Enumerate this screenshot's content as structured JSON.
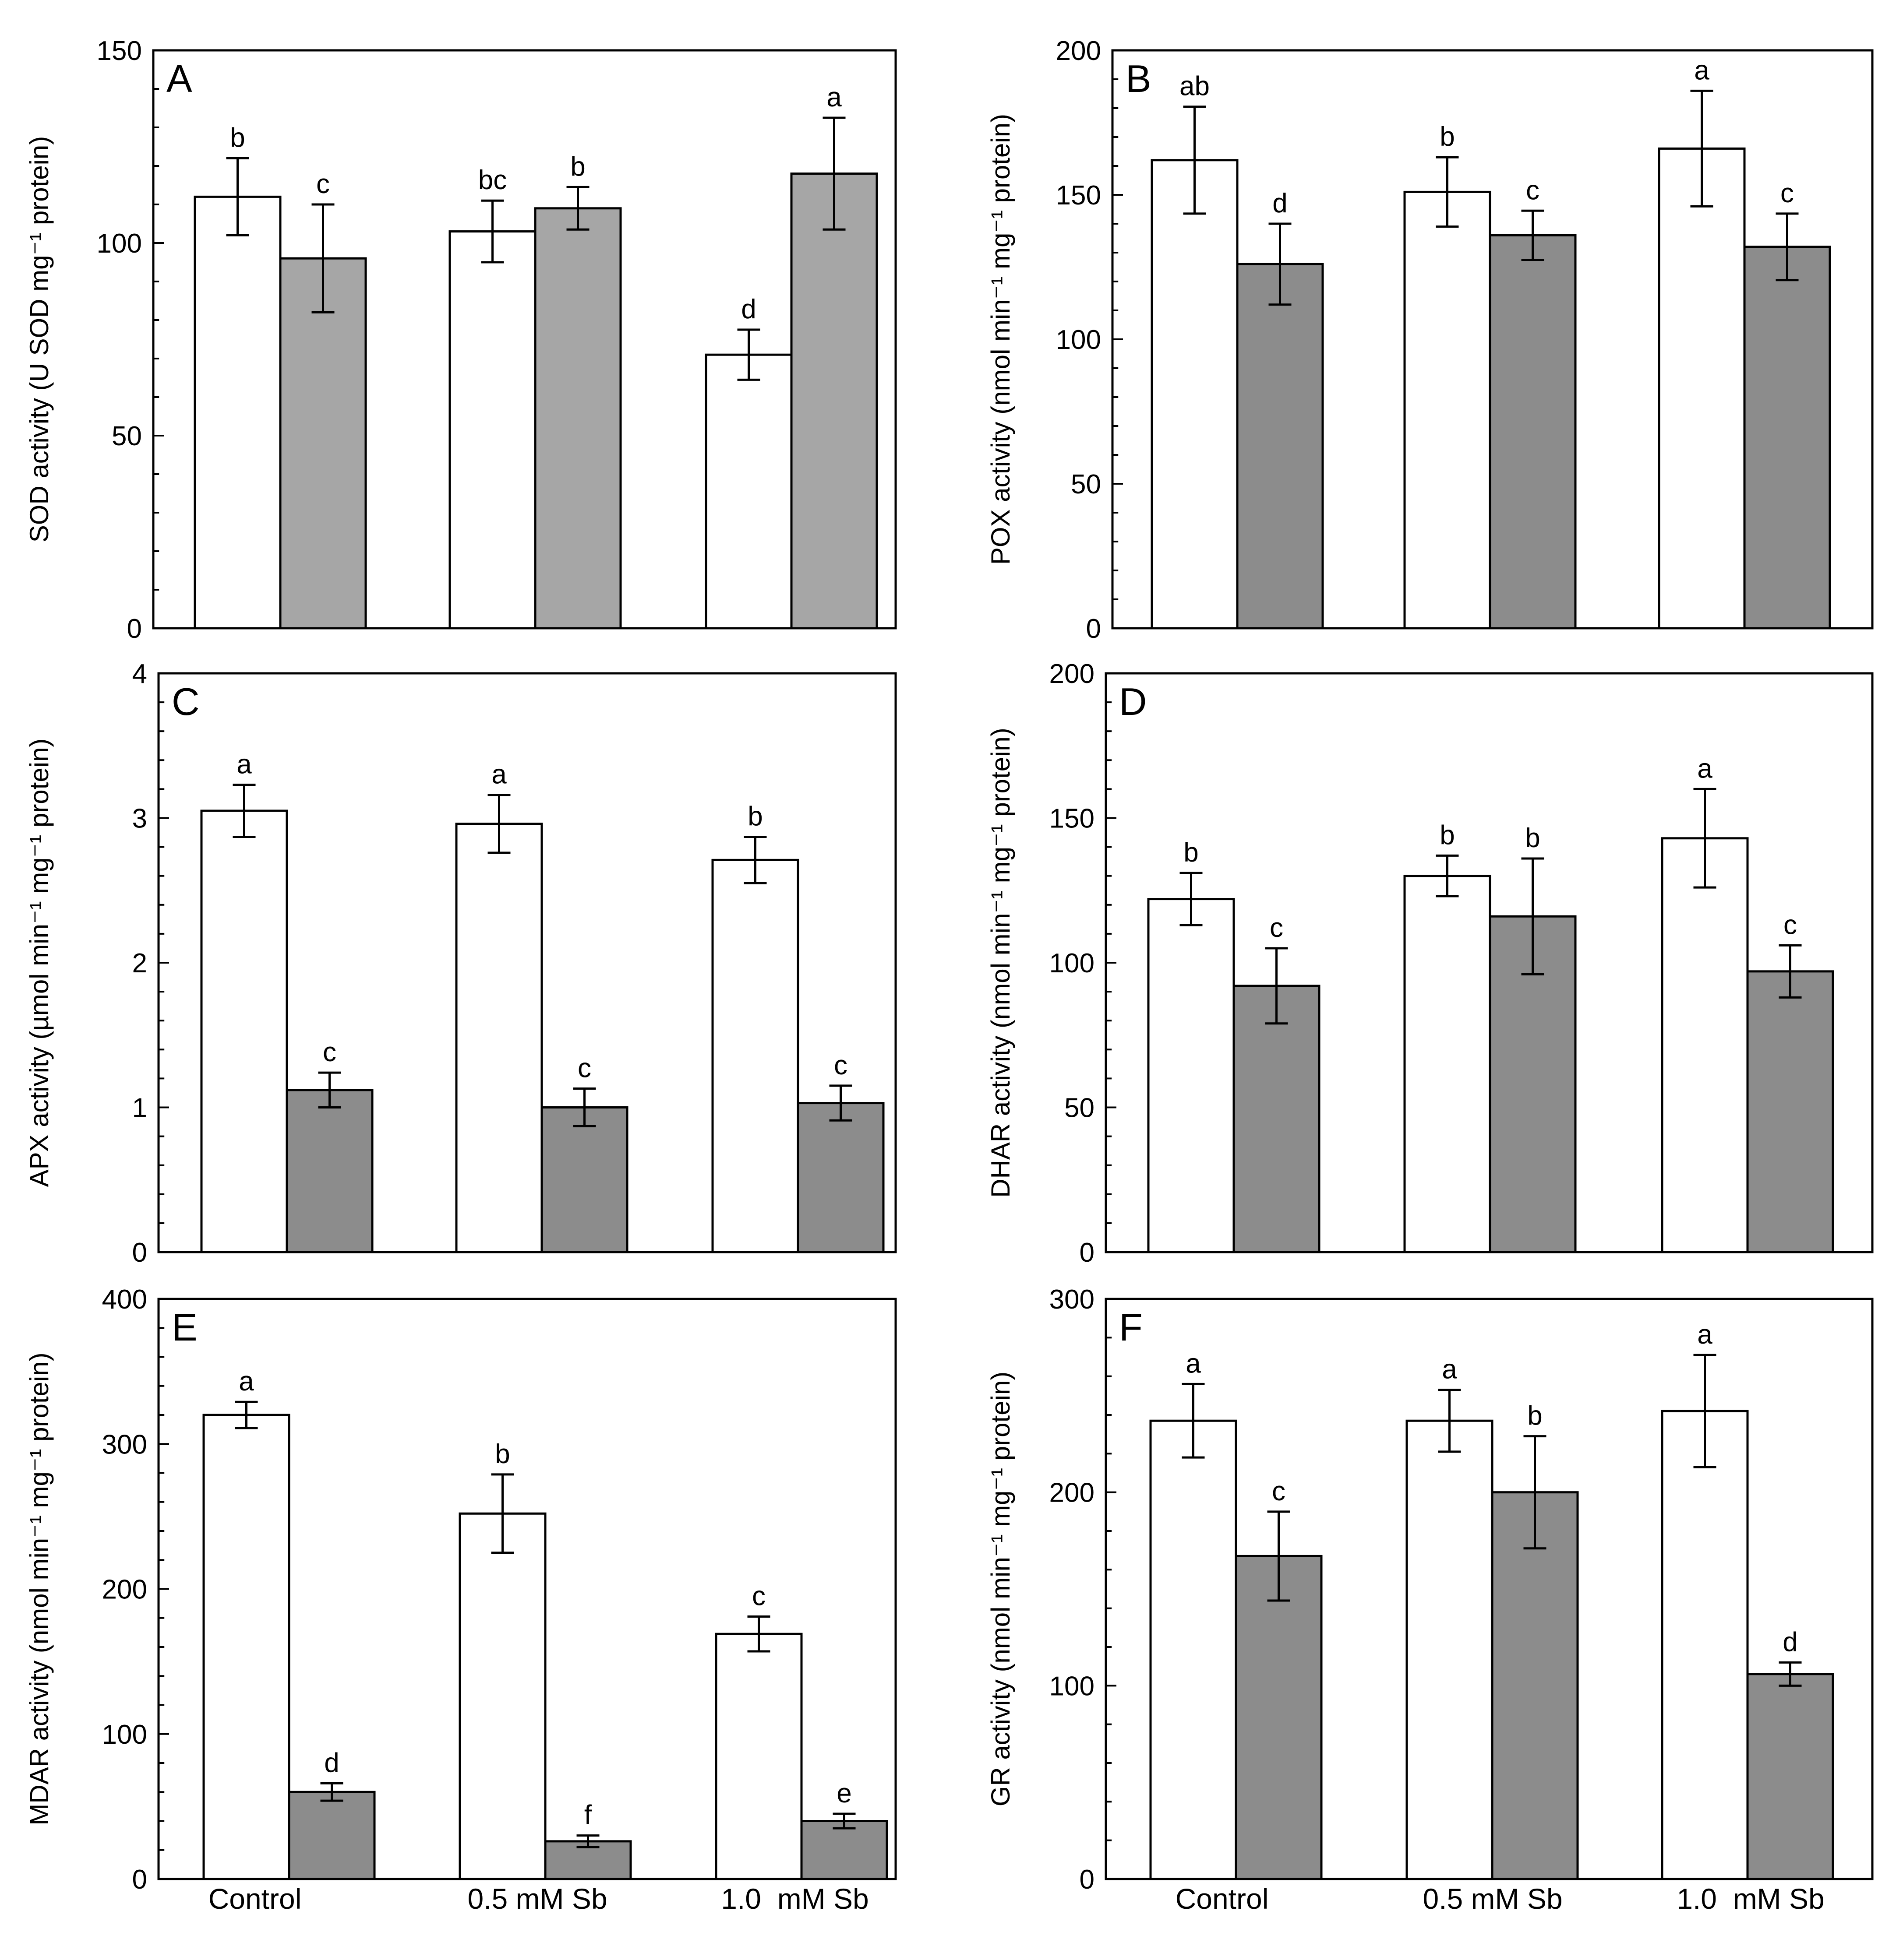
{
  "chart_data": [
    {
      "panel": "A",
      "type": "bar",
      "ylabel": "SOD activity (U SOD mg⁻¹ protein)",
      "ylim": [
        0,
        150
      ],
      "yticks": [
        0,
        50,
        100,
        150
      ],
      "ytick_labels": [
        "0",
        "50",
        "100",
        "150"
      ],
      "categories": [
        "Control",
        "0.5 mM Sb",
        "1.0  mM Sb"
      ],
      "series": [
        {
          "color": "#ffffff",
          "values": [
            112,
            103,
            71
          ],
          "errors": [
            10,
            8,
            6.5
          ],
          "letters": [
            "b",
            "bc",
            "d"
          ]
        },
        {
          "color": "#a6a6a6",
          "values": [
            96,
            109,
            118
          ],
          "errors": [
            14,
            5.5,
            14.5
          ],
          "letters": [
            "c",
            "b",
            "a"
          ]
        }
      ]
    },
    {
      "panel": "B",
      "type": "bar",
      "ylabel": "POX activity (nmol  min⁻¹ mg⁻¹ protein)",
      "ylim": [
        0,
        200
      ],
      "yticks": [
        0,
        50,
        100,
        150,
        200
      ],
      "ytick_labels": [
        "0",
        "50",
        "100",
        "150",
        "200"
      ],
      "categories": [
        "Control",
        "0.5 mM Sb",
        "1.0  mM Sb"
      ],
      "series": [
        {
          "color": "#ffffff",
          "values": [
            162,
            151,
            166
          ],
          "errors": [
            18.5,
            12,
            20
          ],
          "letters": [
            "ab",
            "b",
            "a"
          ]
        },
        {
          "color": "#8c8c8c",
          "values": [
            126,
            136,
            132
          ],
          "errors": [
            14,
            8.5,
            11.5
          ],
          "letters": [
            "d",
            "c",
            "c"
          ]
        }
      ]
    },
    {
      "panel": "C",
      "type": "bar",
      "ylabel": "APX activity (µmol  min⁻¹ mg⁻¹ protein)",
      "ylim": [
        0,
        4
      ],
      "yticks": [
        0,
        1,
        2,
        3,
        4
      ],
      "ytick_labels": [
        "0",
        "1",
        "2",
        "3",
        "4"
      ],
      "categories": [
        "Control",
        "0.5 mM Sb",
        "1.0  mM Sb"
      ],
      "series": [
        {
          "color": "#ffffff",
          "values": [
            3.05,
            2.96,
            2.71
          ],
          "errors": [
            0.18,
            0.2,
            0.16
          ],
          "letters": [
            "a",
            "a",
            "b"
          ]
        },
        {
          "color": "#8c8c8c",
          "values": [
            1.12,
            1.0,
            1.03
          ],
          "errors": [
            0.12,
            0.13,
            0.12
          ],
          "letters": [
            "c",
            "c",
            "c"
          ]
        }
      ]
    },
    {
      "panel": "D",
      "type": "bar",
      "ylabel": "DHAR activity (nmol min⁻¹ mg⁻¹ protein)",
      "ylim": [
        0,
        200
      ],
      "yticks": [
        0,
        50,
        100,
        150,
        200
      ],
      "ytick_labels": [
        "0",
        "50",
        "100",
        "150",
        "200"
      ],
      "categories": [
        "Control",
        "0.5 mM Sb",
        "1.0  mM Sb"
      ],
      "series": [
        {
          "color": "#ffffff",
          "values": [
            122,
            130,
            143
          ],
          "errors": [
            9,
            7,
            17
          ],
          "letters": [
            "b",
            "b",
            "a"
          ]
        },
        {
          "color": "#8c8c8c",
          "values": [
            92,
            116,
            97
          ],
          "errors": [
            13,
            20,
            9
          ],
          "letters": [
            "c",
            "b",
            "c"
          ]
        }
      ]
    },
    {
      "panel": "E",
      "type": "bar",
      "ylabel": "MDAR activity (nmol min⁻¹ mg⁻¹ protein)",
      "ylim": [
        0,
        400
      ],
      "yticks": [
        0,
        100,
        200,
        300,
        400
      ],
      "ytick_labels": [
        "0",
        "100",
        "200",
        "300",
        "400"
      ],
      "categories": [
        "Control",
        "0.5 mM Sb",
        "1.0  mM Sb"
      ],
      "series": [
        {
          "color": "#ffffff",
          "values": [
            320,
            252,
            169
          ],
          "errors": [
            9,
            27,
            12
          ],
          "letters": [
            "a",
            "b",
            "c"
          ]
        },
        {
          "color": "#8c8c8c",
          "values": [
            60,
            26,
            40
          ],
          "errors": [
            6,
            4,
            5
          ],
          "letters": [
            "d",
            "f",
            "e"
          ]
        }
      ]
    },
    {
      "panel": "F",
      "type": "bar",
      "ylabel": "GR activity (nmol min⁻¹ mg⁻¹ protein)",
      "ylim": [
        0,
        300
      ],
      "yticks": [
        0,
        100,
        200,
        300
      ],
      "ytick_labels": [
        "0",
        "100",
        "200",
        "300"
      ],
      "categories": [
        "Control",
        "0.5 mM Sb",
        "1.0  mM Sb"
      ],
      "series": [
        {
          "color": "#ffffff",
          "values": [
            237,
            237,
            242
          ],
          "errors": [
            19,
            16,
            29
          ],
          "letters": [
            "a",
            "a",
            "a"
          ]
        },
        {
          "color": "#8c8c8c",
          "values": [
            167,
            200,
            106
          ],
          "errors": [
            23,
            29,
            6
          ],
          "letters": [
            "c",
            "b",
            "d"
          ]
        }
      ]
    }
  ]
}
